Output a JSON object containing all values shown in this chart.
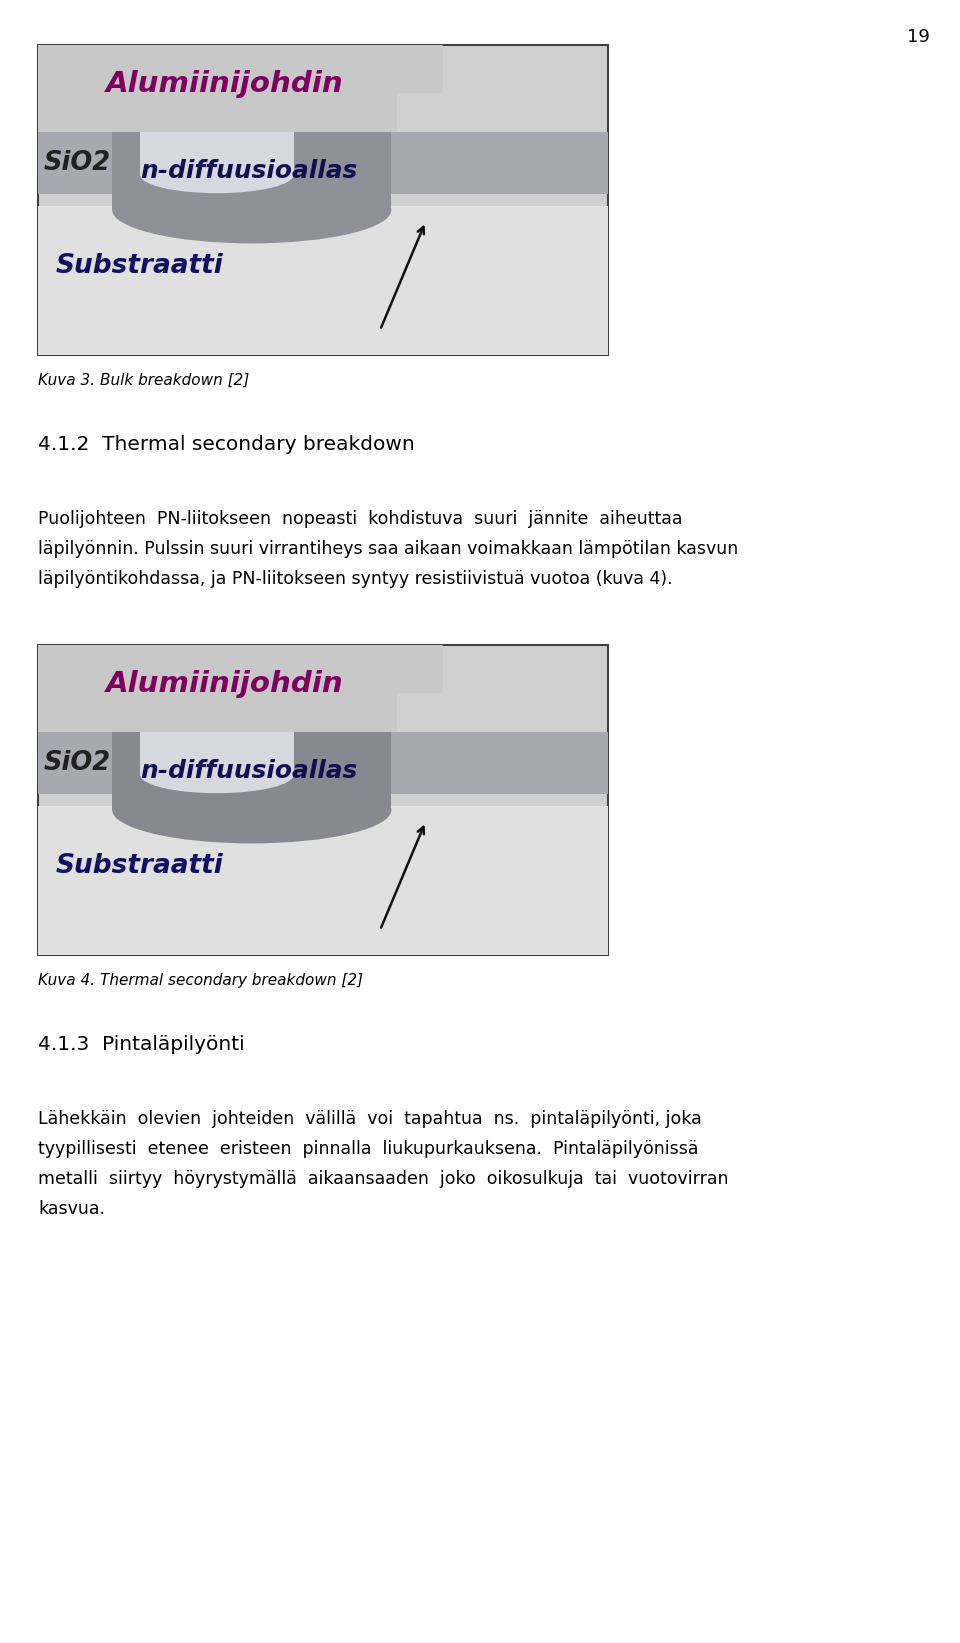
{
  "page_number": "19",
  "background_color": "#ffffff",
  "figure_width": 9.6,
  "figure_height": 16.43,
  "image1_label": "Kuva 3. Bulk breakdown [2]",
  "image2_label": "Kuva 4. Thermal secondary breakdown [2]",
  "section_heading": "4.1.2  Thermal secondary breakdown",
  "section2_heading": "4.1.3  Pintaläpilyönti",
  "paragraph1_line1": "Puolijohteen  PN-liitokseen  nopeasti  kohdistuva  suuri  jännite  aiheuttaa",
  "paragraph1_line2": "läpilyönnin. Pulssin suuri virrantiheys saa aikaan voimakkaan lämpötilan kasvun",
  "paragraph1_line3": "läpilyöntikohdassa, ja PN-liitokseen syntyy resistiivistuä vuotoa (kuva 4).",
  "paragraph2_line1": "Lähekkäin  olevien  johteiden  välillä  voi  tapahtua  ns.  pintaläpilyönti, joka",
  "paragraph2_line2": "tyypillisesti  etenee  eristeen  pinnalla  liukupurkauksena.  Pintaläpilyönissä",
  "paragraph2_line3": "metalli  siirtyy  höyrystymällä  aikaansaaden  joko  oikosulkuja  tai  vuotovirran",
  "paragraph2_line4": "kasvua.",
  "colors": {
    "bg_gray": "#b0b0b0",
    "light_gray": "#d0d0d0",
    "lighter_gray": "#e0e0e0",
    "al_gray": "#c8c8c8",
    "sio2_gray": "#a8a8b0",
    "diffusion_dark": "#888890",
    "inner_light": "#d8d8e0",
    "text_black": "#000000",
    "text_dark": "#1a1a1a",
    "label_al": "#800060",
    "label_sio2": "#202020",
    "label_diff": "#101050",
    "label_sub": "#101060",
    "border": "#404040"
  }
}
